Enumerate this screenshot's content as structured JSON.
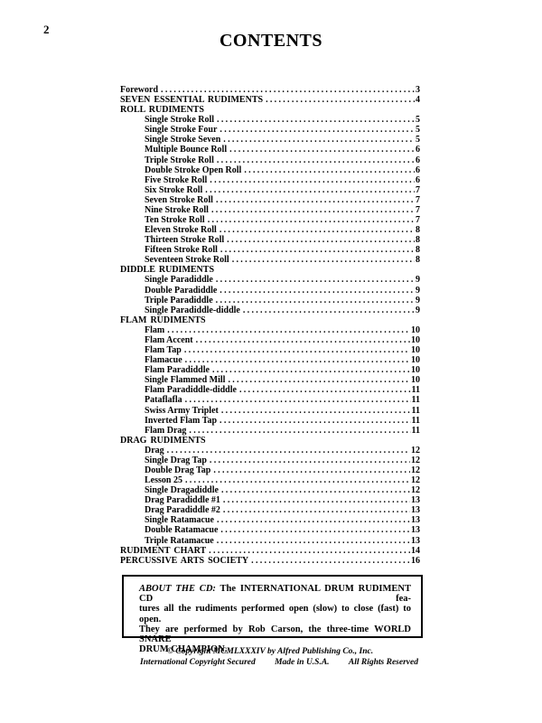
{
  "page": {
    "number": "2",
    "title": "CONTENTS"
  },
  "toc": {
    "rows": [
      {
        "label": "Foreword",
        "page": "3",
        "level": 0
      },
      {
        "label": "SEVEN ESSENTIAL RUDIMENTS",
        "page": "4",
        "level": 0
      },
      {
        "label": "ROLL RUDIMENTS",
        "page": "",
        "level": 0
      },
      {
        "label": "Single Stroke Roll",
        "page": "5",
        "level": 1
      },
      {
        "label": "Single Stroke Four",
        "page": "5",
        "level": 1
      },
      {
        "label": "Single Stroke Seven",
        "page": "5",
        "level": 1
      },
      {
        "label": "Multiple Bounce Roll",
        "page": "6",
        "level": 1
      },
      {
        "label": "Triple Stroke Roll",
        "page": "6",
        "level": 1
      },
      {
        "label": "Double Stroke Open Roll",
        "page": "6",
        "level": 1
      },
      {
        "label": "Five Stroke Roll",
        "page": "6",
        "level": 1
      },
      {
        "label": "Six Stroke Roll",
        "page": "7",
        "level": 1
      },
      {
        "label": "Seven Stroke Roll",
        "page": "7",
        "level": 1
      },
      {
        "label": "Nine Stroke Roll",
        "page": "7",
        "level": 1
      },
      {
        "label": "Ten Stroke Roll",
        "page": "7",
        "level": 1
      },
      {
        "label": "Eleven Stroke Roll",
        "page": "8",
        "level": 1
      },
      {
        "label": "Thirteen Stroke Roll",
        "page": "8",
        "level": 1
      },
      {
        "label": "Fifteen Stroke Roll",
        "page": "8",
        "level": 1
      },
      {
        "label": "Seventeen Stroke Roll",
        "page": "8",
        "level": 1
      },
      {
        "label": "DIDDLE RUDIMENTS",
        "page": "",
        "level": 0
      },
      {
        "label": "Single Paradiddle",
        "page": "9",
        "level": 1
      },
      {
        "label": "Double Paradiddle",
        "page": "9",
        "level": 1
      },
      {
        "label": "Triple Paradiddle",
        "page": "9",
        "level": 1
      },
      {
        "label": "Single Paradiddle-diddle",
        "page": "9",
        "level": 1
      },
      {
        "label": "FLAM RUDIMENTS",
        "page": "",
        "level": 0
      },
      {
        "label": "Flam",
        "page": "10",
        "level": 1
      },
      {
        "label": "Flam Accent",
        "page": "10",
        "level": 1
      },
      {
        "label": "Flam Tap",
        "page": "10",
        "level": 1
      },
      {
        "label": "Flamacue",
        "page": "10",
        "level": 1
      },
      {
        "label": "Flam Paradiddle",
        "page": "10",
        "level": 1
      },
      {
        "label": "Single Flammed Mill",
        "page": "10",
        "level": 1
      },
      {
        "label": "Flam Paradiddle-diddle",
        "page": "11",
        "level": 1
      },
      {
        "label": "Pataflafla",
        "page": "11",
        "level": 1
      },
      {
        "label": "Swiss Army Triplet",
        "page": "11",
        "level": 1
      },
      {
        "label": "Inverted Flam Tap",
        "page": "11",
        "level": 1
      },
      {
        "label": "Flam Drag",
        "page": "11",
        "level": 1
      },
      {
        "label": "DRAG RUDIMENTS",
        "page": "",
        "level": 0
      },
      {
        "label": "Drag",
        "page": "12",
        "level": 1
      },
      {
        "label": "Single Drag Tap",
        "page": "12",
        "level": 1
      },
      {
        "label": "Double Drag Tap",
        "page": "12",
        "level": 1
      },
      {
        "label": "Lesson 25",
        "page": "12",
        "level": 1
      },
      {
        "label": "Single Dragadiddle",
        "page": "12",
        "level": 1
      },
      {
        "label": "Drag Paradiddle #1",
        "page": "13",
        "level": 1
      },
      {
        "label": "Drag Paradiddle #2",
        "page": "13",
        "level": 1
      },
      {
        "label": "Single Ratamacue",
        "page": "13",
        "level": 1
      },
      {
        "label": "Double Ratamacue",
        "page": "13",
        "level": 1
      },
      {
        "label": "Triple Ratamacue",
        "page": "13",
        "level": 1
      },
      {
        "label": "RUDIMENT CHART",
        "page": "14",
        "level": 0
      },
      {
        "label": "PERCUSSIVE ARTS SOCIETY",
        "page": "16",
        "level": 0
      }
    ]
  },
  "about_box": {
    "lead": "ABOUT THE CD:",
    "lines": [
      "The INTERNATIONAL DRUM RUDIMENT CD fea-",
      "tures all the rudiments performed open (slow) to close (fast) to open.",
      "They are performed by Rob Carson, the three-time WORLD SNARE",
      "DRUM CHAMPION."
    ]
  },
  "copyright": {
    "line1": "© Copyright MCMLXXXIV by Alfred Publishing Co., Inc.",
    "left": "International Copyright Secured",
    "center": "Made in U.S.A.",
    "right": "All Rights Reserved"
  }
}
